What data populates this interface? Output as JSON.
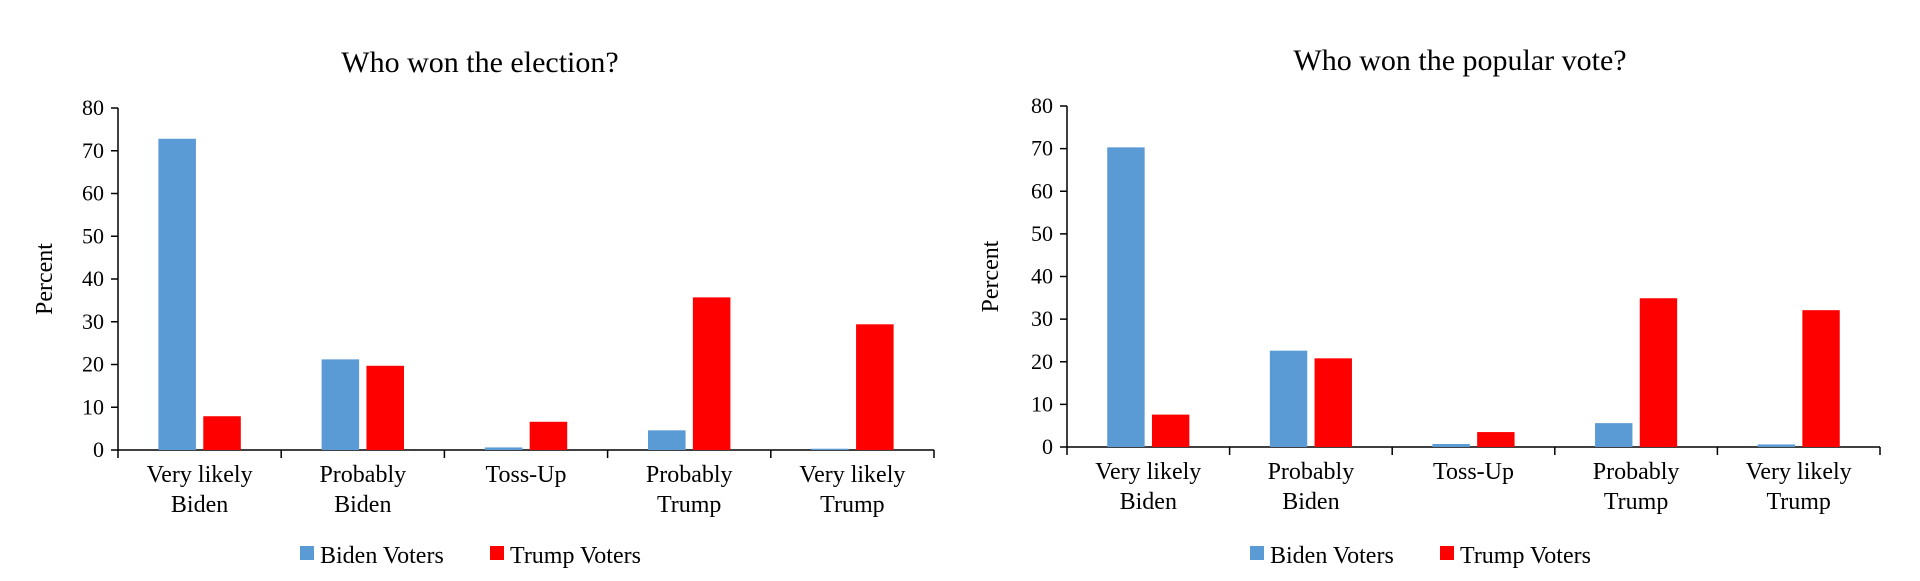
{
  "colors": {
    "biden": "#5b9bd5",
    "trump": "#ff0000"
  },
  "chart_data": [
    {
      "type": "bar",
      "title": "Who won the election?",
      "xlabel": "",
      "ylabel": "Percent",
      "ylim": [
        0,
        80
      ],
      "yticks": [
        "0",
        "10",
        "20",
        "30",
        "40",
        "50",
        "60",
        "70",
        "80"
      ],
      "categories": [
        [
          "Very likely",
          "Biden"
        ],
        [
          "Probably",
          "Biden"
        ],
        [
          "Toss-Up"
        ],
        [
          "Probably",
          "Trump"
        ],
        [
          "Very likely",
          "Trump"
        ]
      ],
      "series": [
        {
          "name": "Biden Voters",
          "color": "#5b9bd5",
          "values": [
            72.8,
            21.2,
            0.6,
            4.6,
            0.3
          ]
        },
        {
          "name": "Trump Voters",
          "color": "#ff0000",
          "values": [
            7.9,
            19.7,
            6.6,
            35.7,
            29.4
          ]
        }
      ],
      "legend": "bottom"
    },
    {
      "type": "bar",
      "title": "Who won the popular vote?",
      "xlabel": "",
      "ylabel": "Percent",
      "ylim": [
        0,
        80
      ],
      "yticks": [
        "0",
        "10",
        "20",
        "30",
        "40",
        "50",
        "60",
        "70",
        "80"
      ],
      "categories": [
        [
          "Very likely",
          "Biden"
        ],
        [
          "Probably",
          "Biden"
        ],
        [
          "Toss-Up"
        ],
        [
          "Probably",
          "Trump"
        ],
        [
          "Very likely",
          "Trump"
        ]
      ],
      "series": [
        {
          "name": "Biden Voters",
          "color": "#5b9bd5",
          "values": [
            70.3,
            22.6,
            0.7,
            5.6,
            0.6
          ]
        },
        {
          "name": "Trump Voters",
          "color": "#ff0000",
          "values": [
            7.6,
            20.8,
            3.5,
            34.9,
            32.1
          ]
        }
      ],
      "legend": "bottom"
    }
  ]
}
